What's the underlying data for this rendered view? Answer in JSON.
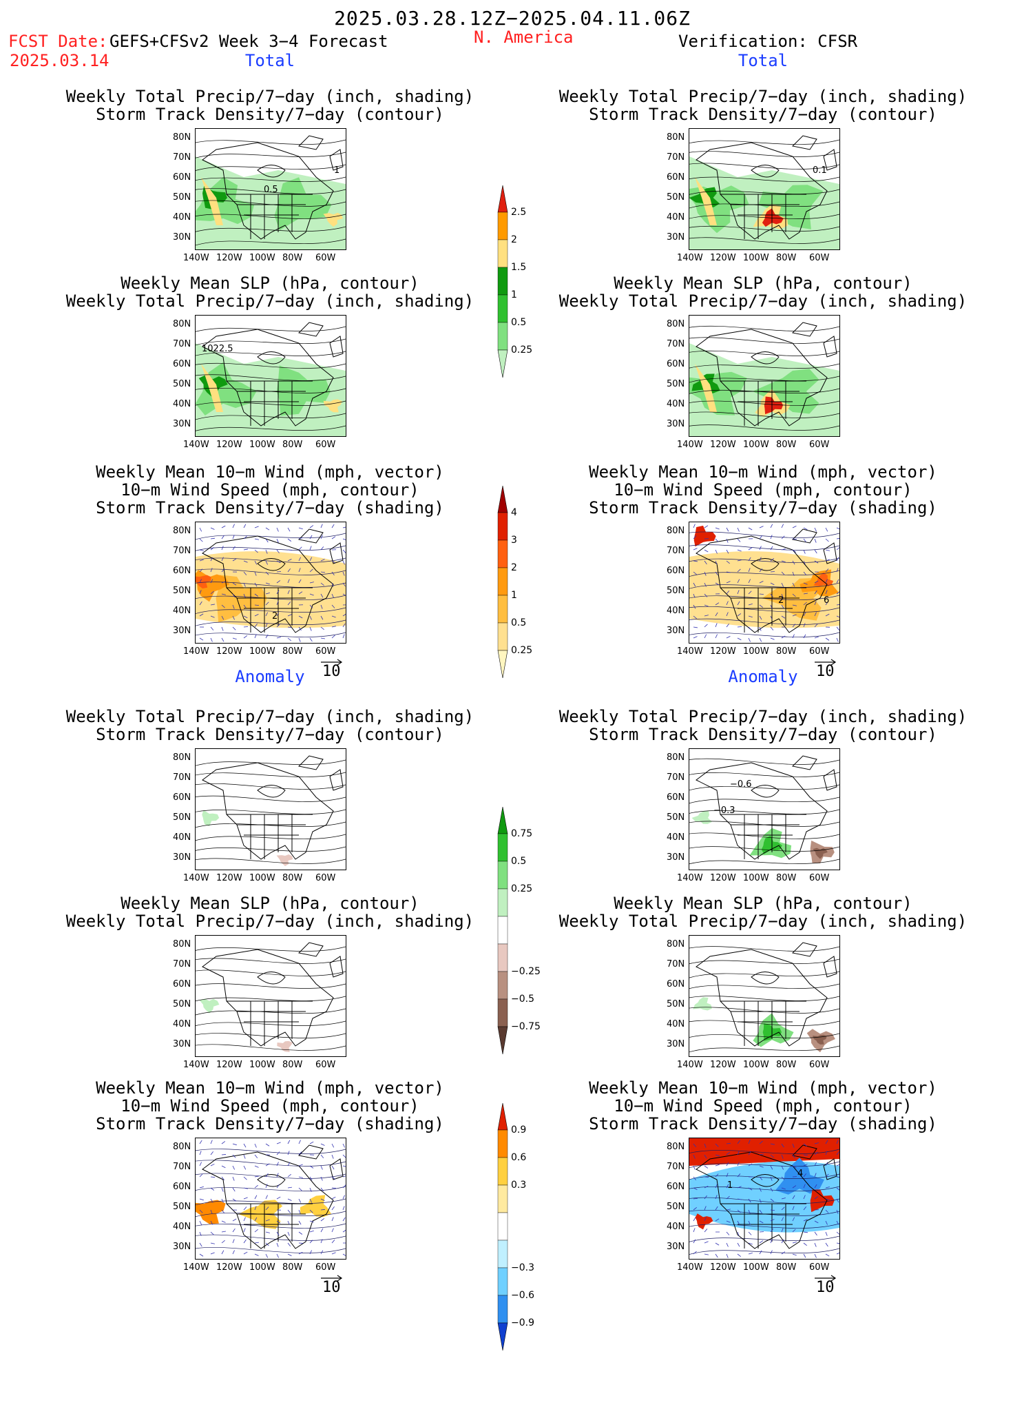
{
  "header": {
    "period": "2025.03.28.12Z−2025.04.11.06Z",
    "fcst_label": "FCST Date:",
    "model": "GEFS+CFSv2 Week 3−4 Forecast",
    "fcst_date": "2025.03.14",
    "region": "N. America",
    "verification": "Verification: CFSR"
  },
  "sections": {
    "total": "Total",
    "anomaly": "Anomaly"
  },
  "titles": {
    "precip_track": [
      "Weekly Total Precip/7−day (inch, shading)",
      "Storm Track Density/7−day (contour)"
    ],
    "slp_precip": [
      "Weekly Mean SLP (hPa, contour)",
      "Weekly Total Precip/7−day (inch, shading)"
    ],
    "wind_track": [
      "Weekly Mean 10−m Wind (mph, vector)",
      "10−m Wind Speed (mph, contour)",
      "Storm Track Density/7−day (shading)"
    ]
  },
  "axes": {
    "lat": [
      "80N",
      "70N",
      "60N",
      "50N",
      "40N",
      "30N"
    ],
    "lon": [
      "140W",
      "120W",
      "100W",
      "80W",
      "60W"
    ]
  },
  "vector_ref": "10",
  "contour_labels": {
    "f1": "0.5",
    "f1b": "1",
    "v1": "0.1",
    "f2": "1022.5",
    "f3": "2",
    "v3a": "2",
    "v3b": "6",
    "v4a": "−0.6",
    "v4b": "−0.3",
    "v6a": "1",
    "v6b": "4"
  },
  "colorbars": {
    "precip_total": [
      "2.5",
      "2",
      "1.5",
      "1",
      "0.5",
      "0.25"
    ],
    "track_total": [
      "4",
      "3",
      "2",
      "1",
      "0.5",
      "0.25"
    ],
    "precip_anom": [
      "0.75",
      "0.5",
      "0.25",
      "−0.25",
      "−0.5",
      "−0.75"
    ],
    "track_anom": [
      "0.9",
      "0.6",
      "0.3",
      "−0.3",
      "−0.6",
      "−0.9"
    ]
  },
  "colors": {
    "precip_total": [
      "#e02010",
      "#ff9a00",
      "#ffe080",
      "#109a10",
      "#30c030",
      "#80e080",
      "#c0f0c0"
    ],
    "track_total": [
      "#a00000",
      "#e02000",
      "#ff6010",
      "#ff9a10",
      "#ffbe40",
      "#ffe090",
      "#fff6c0"
    ],
    "precip_anom": [
      "#109a10",
      "#30c030",
      "#80e080",
      "#c0f0c0",
      "#ffffff",
      "#e8c8c0",
      "#b89080",
      "#8a6050",
      "#5a3a30"
    ],
    "track_anom": [
      "#e02000",
      "#ff8a00",
      "#ffd040",
      "#ffeaa0",
      "#ffffff",
      "#c0f0ff",
      "#70d0ff",
      "#3090f0",
      "#1040d0"
    ]
  }
}
